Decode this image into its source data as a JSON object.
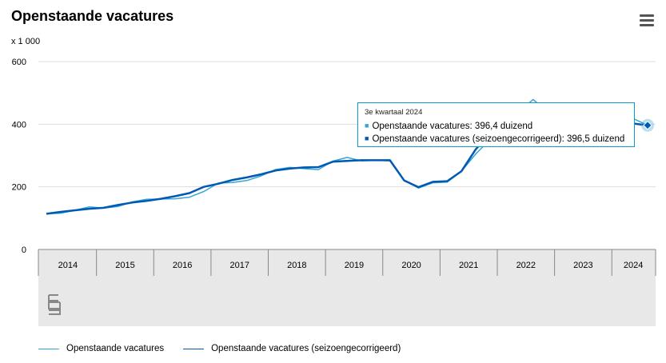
{
  "header": {
    "title": "Openstaande vacatures",
    "unit": "x 1 000"
  },
  "menu_icon": "hamburger-menu-icon",
  "colors": {
    "series1": "#35a5d4",
    "series2": "#0059b3",
    "grid": "#dddddd",
    "axis": "#888888",
    "panel": "#e8e8e8"
  },
  "chart_data": {
    "type": "line",
    "title": "Openstaande vacatures",
    "ylabel": "x 1 000",
    "ylim": [
      0,
      600
    ],
    "yticks": [
      "0",
      "200",
      "400",
      "600"
    ],
    "years": [
      "2014",
      "2015",
      "2016",
      "2017",
      "2018",
      "2019",
      "2020",
      "2021",
      "2022",
      "2023",
      "2024"
    ],
    "x_start": "2014 Q1",
    "x_end": "2024 Q3",
    "grid": true,
    "legend_position": "bottom",
    "series": [
      {
        "name": "Openstaande vacatures",
        "values": [
          114,
          116,
          125,
          136,
          132,
          137,
          152,
          160,
          161,
          162,
          167,
          185,
          212,
          214,
          220,
          235,
          255,
          262,
          258,
          255,
          282,
          294,
          283,
          285,
          283,
          220,
          196,
          213,
          215,
          250,
          305,
          351,
          400,
          440,
          479,
          440,
          443,
          425,
          412,
          410,
          404,
          418,
          396.4
        ]
      },
      {
        "name": "Openstaande vacatures (seizoengecorrigeerd)",
        "values": [
          114,
          120,
          125,
          130,
          133,
          142,
          150,
          155,
          162,
          170,
          180,
          200,
          210,
          222,
          230,
          240,
          252,
          258,
          262,
          263,
          280,
          283,
          285,
          285,
          285,
          220,
          199,
          216,
          218,
          250,
          320,
          370,
          410,
          438,
          442,
          440,
          435,
          425,
          415,
          410,
          405,
          402,
          396.5
        ]
      }
    ]
  },
  "tooltip": {
    "title": "3e kwartaal 2024",
    "row1": "Openstaande vacatures: 396,4 duizend",
    "row2": "Openstaande vacatures (seizoengecorrigeerd): 396,5 duizend"
  },
  "legend": {
    "item1": "Openstaande vacatures",
    "item2": "Openstaande vacatures (seizoengecorrigeerd)"
  },
  "brand_logo": "cbs-logo"
}
